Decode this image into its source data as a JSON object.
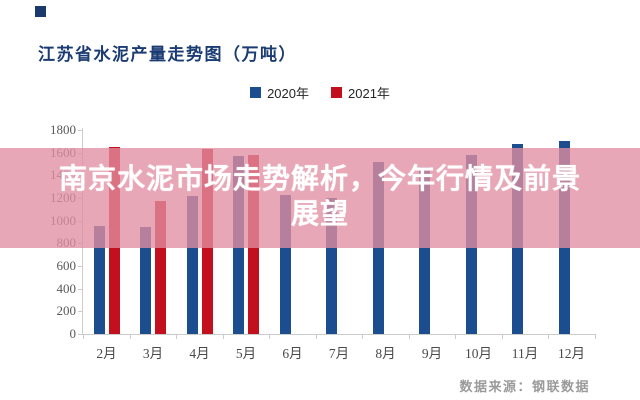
{
  "page_bg": "#ffffff",
  "decoration": {
    "corner_square_color": "#1a3a6b"
  },
  "title": "江苏省水泥产量走势图（万吨）",
  "title_color": "#1b3c73",
  "overlay": {
    "full_text": "南京水泥市场走势解析，今年行情及前景展望",
    "text_line1": "南京水泥市场走势解析，今年行情及前景",
    "text_line2": "展望",
    "bg_color": "rgba(225,142,161,0.78)",
    "text_color": "#ffffff"
  },
  "footer": {
    "source_label": "数据来源：钢联数据",
    "color": "#9b9b9b"
  },
  "axis": {
    "line_color": "#cccccc",
    "tick_label_color": "#595959",
    "month_label_color": "#4a4a4a"
  },
  "chart_data": {
    "type": "bar",
    "title": "江苏省水泥产量走势图（万吨）",
    "categories": [
      "2月",
      "3月",
      "4月",
      "5月",
      "6月",
      "7月",
      "8月",
      "9月",
      "10月",
      "11月",
      "12月"
    ],
    "series": [
      {
        "name": "2020年",
        "color": "#1c4e8f",
        "values": [
          950,
          940,
          1220,
          1570,
          1230,
          1200,
          1520,
          1470,
          1580,
          1680,
          1700
        ]
      },
      {
        "name": "2021年",
        "color": "#c2101f",
        "values": [
          1650,
          1170,
          1630,
          1580,
          null,
          null,
          null,
          null,
          null,
          null,
          null
        ]
      }
    ],
    "xlabel": "",
    "ylabel": "",
    "ylim": [
      0,
      1800
    ],
    "ytick_step": 200,
    "yticks": [
      0,
      200,
      400,
      600,
      800,
      1000,
      1200,
      1400,
      1600,
      1800
    ],
    "grid": false,
    "legend_position": "top-center",
    "note": "2021 series only has data Feb-May"
  }
}
